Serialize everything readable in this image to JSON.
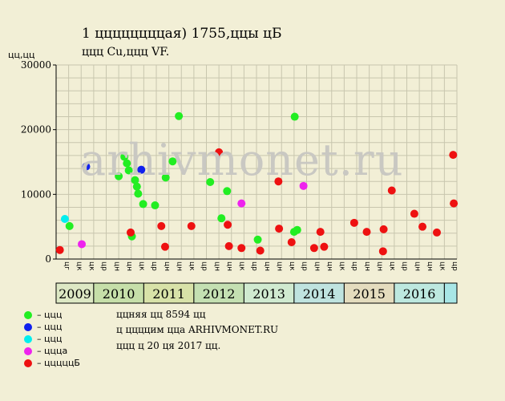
{
  "header": {
    "title": "1 ццццццццая) 1755,ццы цБ",
    "subtitle": "ццц Cu,ццц VF."
  },
  "axis_unit_label": "цц,цц",
  "watermark": "arhivmonet.ru",
  "notes": [
    "ццняя цц 8594 цц",
    "ц ццццим ццa ARHIVMONET.RU",
    "ццц ц 20 ця 2017 цц."
  ],
  "legend": [
    {
      "label": "– ццц",
      "color": "#22ee22"
    },
    {
      "label": "– ццц",
      "color": "#1020ee"
    },
    {
      "label": "– ццц",
      "color": "#00eeee"
    },
    {
      "label": "– ццца",
      "color": "#ee22ee"
    },
    {
      "label": "– цццццБ",
      "color": "#ee1111"
    }
  ],
  "colors": {
    "grid": "#c8c6ae",
    "plot_bg": "#f2efd6",
    "year_odd": "#d8e6bc",
    "year_even": "#c8e2b0"
  },
  "chart_data": {
    "type": "scatter",
    "title": "1 ццццццццая) 1755,ццы цБ",
    "ylabel": "цц,цц",
    "ylim": [
      0,
      30000
    ],
    "yticks": [
      0,
      10000,
      20000,
      30000
    ],
    "grid": true,
    "month_ticks": [
      "цг",
      "цк",
      "цк",
      "цр",
      "цн",
      "цн",
      "цк",
      "цр",
      "цн",
      "цн",
      "цк",
      "цр",
      "цн",
      "цн",
      "цк",
      "цр",
      "цн",
      "цн",
      "цк",
      "цр",
      "цн",
      "цн",
      "цк",
      "цр",
      "цн",
      "цн",
      "цк",
      "цр",
      "цн",
      "цн",
      "цк",
      "цр"
    ],
    "year_bands": [
      {
        "label": "2009",
        "start": 0,
        "end": 3,
        "color": "#dde8c4"
      },
      {
        "label": "2010",
        "start": 3,
        "end": 7,
        "color": "#c6dfa9"
      },
      {
        "label": "2011",
        "start": 7,
        "end": 11,
        "color": "#d8e2a8"
      },
      {
        "label": "2012",
        "start": 11,
        "end": 15,
        "color": "#c4e0b2"
      },
      {
        "label": "2013",
        "start": 15,
        "end": 19,
        "color": "#d0ead0"
      },
      {
        "label": "2014",
        "start": 19,
        "end": 23,
        "color": "#bfe3df"
      },
      {
        "label": "2015",
        "start": 23,
        "end": 27,
        "color": "#e4dcbe"
      },
      {
        "label": "2016",
        "start": 27,
        "end": 31,
        "color": "#bde8df"
      },
      {
        "label": "",
        "start": 31,
        "end": 32,
        "color": "#a8e6e6"
      }
    ],
    "series": [
      {
        "color": "#22ee22",
        "points": [
          [
            1.07,
            5100
          ],
          [
            5.0,
            12800
          ],
          [
            5.45,
            15800
          ],
          [
            5.65,
            14800
          ],
          [
            5.8,
            13700
          ],
          [
            6.05,
            3500
          ],
          [
            6.3,
            12200
          ],
          [
            6.45,
            11200
          ],
          [
            6.55,
            10100
          ],
          [
            6.95,
            8500
          ],
          [
            7.9,
            8300
          ],
          [
            8.75,
            12600
          ],
          [
            9.3,
            15100
          ],
          [
            9.8,
            22100
          ],
          [
            12.3,
            11900
          ],
          [
            13.2,
            6300
          ],
          [
            13.65,
            10500
          ],
          [
            16.1,
            3000
          ],
          [
            19.0,
            4200
          ],
          [
            19.05,
            22000
          ],
          [
            19.25,
            4500
          ]
        ]
      },
      {
        "color": "#1020ee",
        "points": [
          [
            2.4,
            14300
          ],
          [
            6.8,
            13800
          ]
        ]
      },
      {
        "color": "#00eeee",
        "points": [
          [
            0.7,
            6200
          ]
        ]
      },
      {
        "color": "#ee22ee",
        "points": [
          [
            2.05,
            2300
          ],
          [
            14.8,
            8600
          ],
          [
            19.75,
            11300
          ]
        ]
      },
      {
        "color": "#ee1111",
        "points": [
          [
            0.3,
            1400
          ],
          [
            5.95,
            4100
          ],
          [
            8.4,
            5100
          ],
          [
            8.7,
            1900
          ],
          [
            10.8,
            5100
          ],
          [
            13.0,
            16500
          ],
          [
            13.7,
            5300
          ],
          [
            13.8,
            2000
          ],
          [
            14.8,
            1700
          ],
          [
            16.3,
            1300
          ],
          [
            17.75,
            12000
          ],
          [
            17.8,
            4700
          ],
          [
            18.8,
            2600
          ],
          [
            20.6,
            1700
          ],
          [
            21.1,
            4200
          ],
          [
            21.4,
            1900
          ],
          [
            23.8,
            5600
          ],
          [
            24.8,
            4200
          ],
          [
            26.1,
            1200
          ],
          [
            26.15,
            4600
          ],
          [
            26.8,
            10600
          ],
          [
            28.6,
            7000
          ],
          [
            29.25,
            5000
          ],
          [
            30.4,
            4100
          ],
          [
            31.7,
            16100
          ],
          [
            31.75,
            8600
          ]
        ]
      }
    ]
  }
}
